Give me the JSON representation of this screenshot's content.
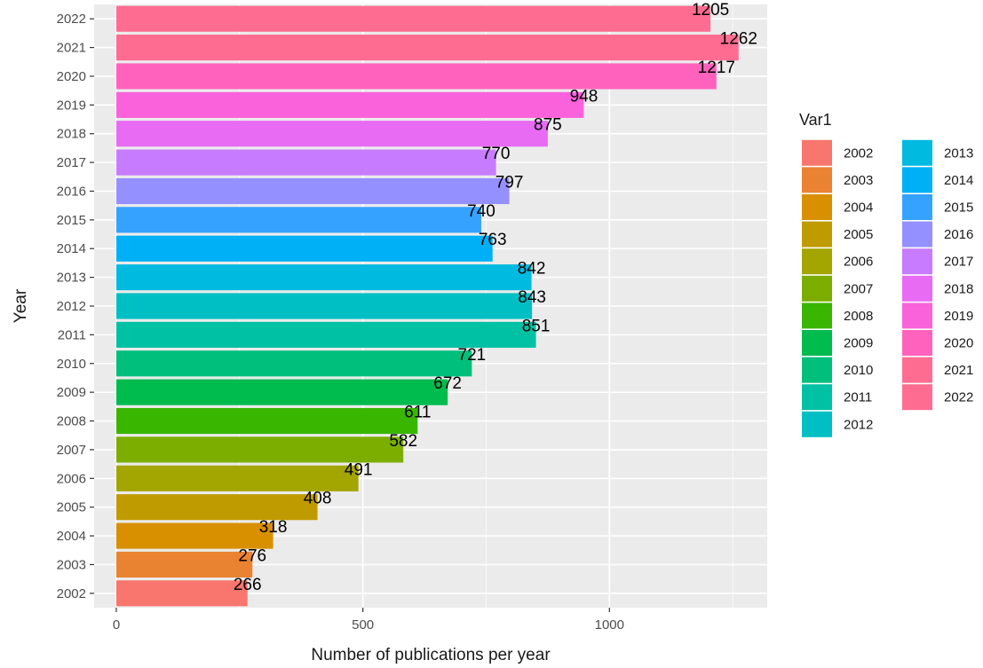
{
  "chart_data": {
    "type": "bar",
    "orientation": "horizontal",
    "categories": [
      "2002",
      "2003",
      "2004",
      "2005",
      "2006",
      "2007",
      "2008",
      "2009",
      "2010",
      "2011",
      "2012",
      "2013",
      "2014",
      "2015",
      "2016",
      "2017",
      "2018",
      "2019",
      "2020",
      "2021",
      "2022"
    ],
    "values": [
      266,
      276,
      318,
      408,
      491,
      582,
      611,
      672,
      721,
      851,
      843,
      842,
      763,
      740,
      797,
      770,
      875,
      948,
      1217,
      1262,
      1205
    ],
    "colors": [
      "#F8766D",
      "#EA8331",
      "#D89000",
      "#C09B00",
      "#A3A500",
      "#7CAE00",
      "#39B600",
      "#00BB4E",
      "#00BF7D",
      "#00C1A3",
      "#00BFC4",
      "#00BAE0",
      "#00B0F6",
      "#35A2FF",
      "#9590FF",
      "#C77CFF",
      "#E76BF3",
      "#FA62DB",
      "#FF62BC",
      "#FF6C91",
      "#FF6C91"
    ],
    "xlabel": "Number of publications per year",
    "ylabel": "Year",
    "x_ticks": [
      "0",
      "500",
      "1000"
    ],
    "x_tick_values": [
      0,
      500,
      1000
    ],
    "xlim": [
      -45,
      1320
    ],
    "grid": true,
    "legend": {
      "title": "Var1",
      "position": "right",
      "columns": 2,
      "items": [
        "2002",
        "2003",
        "2004",
        "2005",
        "2006",
        "2007",
        "2008",
        "2009",
        "2010",
        "2011",
        "2012",
        "2013",
        "2014",
        "2015",
        "2016",
        "2017",
        "2018",
        "2019",
        "2020",
        "2021",
        "2022"
      ],
      "colors": [
        "#F8766D",
        "#EA8331",
        "#D89000",
        "#C09B00",
        "#A3A500",
        "#7CAE00",
        "#39B600",
        "#00BB4E",
        "#00BF7D",
        "#00C1A3",
        "#00BFC4",
        "#00BAE0",
        "#00B0F6",
        "#35A2FF",
        "#9590FF",
        "#C77CFF",
        "#E76BF3",
        "#FA62DB",
        "#FF62BC",
        "#FF6C91",
        "#FF6C91"
      ]
    }
  }
}
